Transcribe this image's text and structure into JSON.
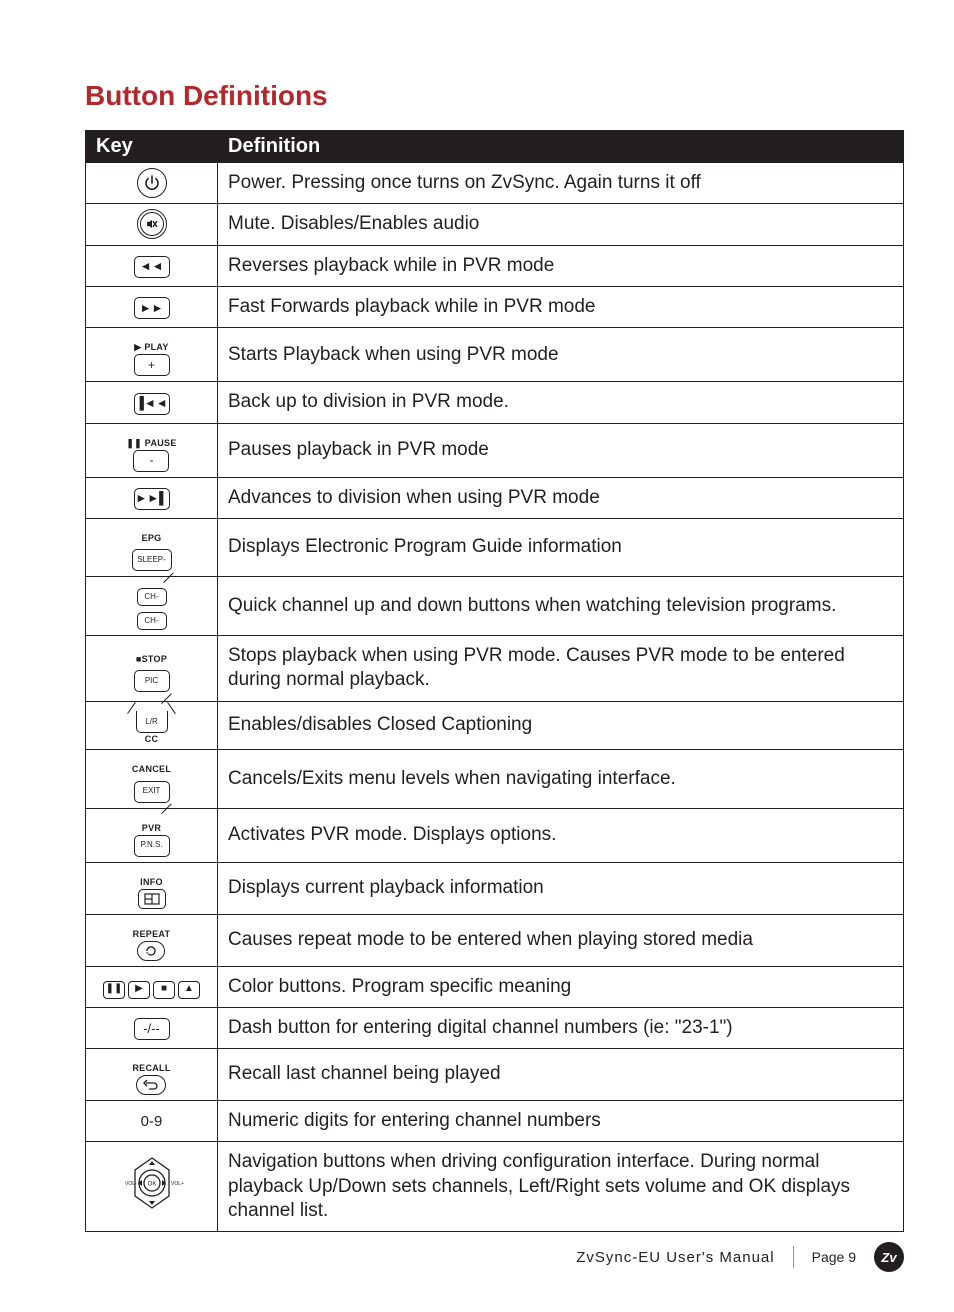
{
  "title": "Button Definitions",
  "headers": {
    "key": "Key",
    "def": "Definition"
  },
  "accent_color": "#b3282d",
  "text_color": "#231f20",
  "rows": [
    {
      "key_type": "power",
      "def": "Power. Pressing once turns on ZvSync. Again turns it off"
    },
    {
      "key_type": "mute",
      "def": "Mute. Disables/Enables audio"
    },
    {
      "key_type": "rewind",
      "def": "Reverses playback while in PVR mode"
    },
    {
      "key_type": "ffwd",
      "def": "Fast Forwards playback while in PVR mode"
    },
    {
      "key_type": "play",
      "label_top": "▶ PLAY",
      "label_in": "+",
      "def": "Starts Playback when using PVR mode"
    },
    {
      "key_type": "prev",
      "def": "Back up to division in PVR mode."
    },
    {
      "key_type": "pause",
      "label_top": "❚❚ PAUSE",
      "label_in": "-",
      "def": "Pauses playback in PVR mode"
    },
    {
      "key_type": "next",
      "def": "Advances to division when using PVR mode"
    },
    {
      "key_type": "epg",
      "label_top": "EPG",
      "label_in": "SLEEP-",
      "def": "Displays Electronic Program Guide information"
    },
    {
      "key_type": "ch",
      "label_a": "CH-",
      "label_b": "CH-",
      "def": "Quick channel up and down buttons when watching television programs."
    },
    {
      "key_type": "stop",
      "label_top": "■STOP",
      "label_in": "PIC",
      "def": "Stops playback when using PVR mode. Causes PVR mode to be entered during normal playback."
    },
    {
      "key_type": "cc",
      "label_in": "L/R",
      "label_bot": "CC",
      "def": "Enables/disables Closed Captioning"
    },
    {
      "key_type": "cancel",
      "label_top": "CANCEL",
      "label_in": "EXIT",
      "def": "Cancels/Exits menu levels when navigating interface."
    },
    {
      "key_type": "pvr",
      "label_top": "PVR",
      "label_in": "P.N.S.",
      "def": "Activates PVR mode. Displays options."
    },
    {
      "key_type": "info",
      "label_top": "INFO",
      "def": "Displays current playback information"
    },
    {
      "key_type": "repeat",
      "label_top": "REPEAT",
      "def": "Causes repeat mode to be entered when playing stored media"
    },
    {
      "key_type": "colors",
      "def": "Color buttons. Program specific meaning"
    },
    {
      "key_type": "dash",
      "label_in": "-/--",
      "def": "Dash button for entering digital channel numbers (ie: \"23-1\")"
    },
    {
      "key_type": "recall",
      "label_top": "RECALL",
      "def": "Recall last channel being played"
    },
    {
      "key_type": "digits",
      "label": "0-9",
      "def": "Numeric digits for entering channel numbers"
    },
    {
      "key_type": "nav",
      "def": "Navigation buttons when driving configuration interface. During normal playback Up/Down sets channels, Left/Right sets volume and OK displays channel list."
    }
  ],
  "footer": {
    "manual": "ZvSync-EU User's Manual",
    "page_label": "Page 9",
    "badge": "Zv"
  }
}
